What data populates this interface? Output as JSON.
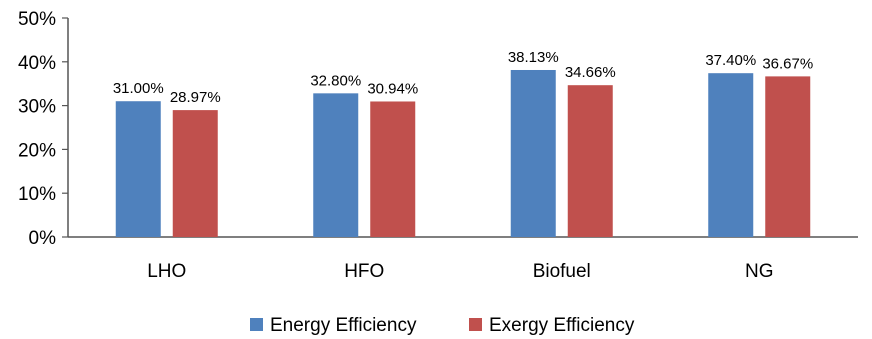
{
  "chart_data": {
    "type": "bar",
    "categories": [
      "LHO",
      "HFO",
      "Biofuel",
      "NG"
    ],
    "series": [
      {
        "name": "Energy Efficiency",
        "color": "#4f81bd",
        "values": [
          31.0,
          32.8,
          38.13,
          37.4
        ],
        "labels": [
          "31.00%",
          "32.80%",
          "38.13%",
          "37.40%"
        ]
      },
      {
        "name": "Exergy Efficiency",
        "color": "#c0504d",
        "values": [
          28.97,
          30.94,
          34.66,
          36.67
        ],
        "labels": [
          "28.97%",
          "30.94%",
          "34.66%",
          "36.67%"
        ]
      }
    ],
    "y_ticks": [
      {
        "value": 0,
        "label": "0%"
      },
      {
        "value": 10,
        "label": "10%"
      },
      {
        "value": 20,
        "label": "20%"
      },
      {
        "value": 30,
        "label": "30%"
      },
      {
        "value": 40,
        "label": "40%"
      },
      {
        "value": 50,
        "label": "50%"
      }
    ],
    "ylim": [
      0,
      50
    ],
    "grid": false,
    "legend_position": "bottom"
  }
}
